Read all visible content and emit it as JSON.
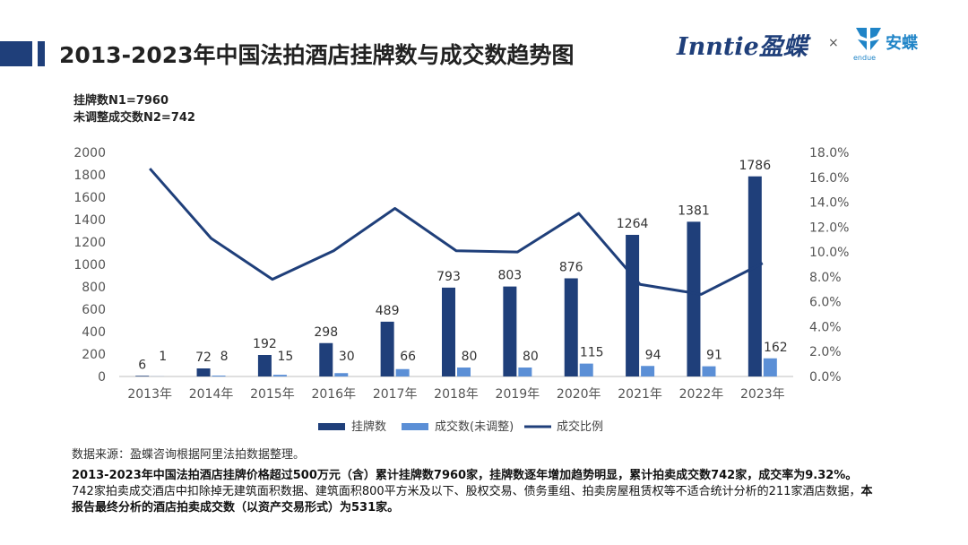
{
  "header": {
    "title": "2013-2023年中国法拍酒店挂牌数与成交数趋势图",
    "logo_text": "Inntie盈蝶",
    "logo_separator": "×",
    "partner_logo": "安蝶",
    "partner_logo_sub": "endue"
  },
  "stats": {
    "n1": "挂牌数N1=7960",
    "n2": "未调整成交数N2=742"
  },
  "colors": {
    "accent": "#1f3f7a",
    "listing_bar": "#1f3f7a",
    "deal_bar": "#5b8fd6",
    "ratio_line": "#1f3f7a"
  },
  "chart_data": {
    "type": "bar",
    "categories": [
      "2013年",
      "2014年",
      "2015年",
      "2016年",
      "2017年",
      "2018年",
      "2019年",
      "2020年",
      "2021年",
      "2022年",
      "2023年"
    ],
    "series": [
      {
        "name": "挂牌数",
        "type": "bar",
        "axis": "left",
        "values": [
          6,
          72,
          192,
          298,
          489,
          793,
          803,
          876,
          1264,
          1381,
          1786
        ]
      },
      {
        "name": "成交数(未调整)",
        "type": "bar",
        "axis": "left",
        "values": [
          1,
          8,
          15,
          30,
          66,
          80,
          80,
          115,
          94,
          91,
          162
        ]
      },
      {
        "name": "成交比例",
        "type": "line",
        "axis": "right",
        "values": [
          16.7,
          11.1,
          7.8,
          10.1,
          13.5,
          10.1,
          10.0,
          13.1,
          7.4,
          6.6,
          9.1
        ]
      }
    ],
    "ylim": [
      0,
      2000
    ],
    "yticks": [
      "0",
      "200",
      "400",
      "600",
      "800",
      "1000",
      "1200",
      "1400",
      "1600",
      "1800",
      "2000"
    ],
    "y2lim": [
      0,
      18
    ],
    "y2ticks": [
      "0.0%",
      "2.0%",
      "4.0%",
      "6.0%",
      "8.0%",
      "10.0%",
      "12.0%",
      "14.0%",
      "16.0%",
      "18.0%"
    ],
    "legend_position": "bottom",
    "grid": false
  },
  "footer": {
    "source": "数据来源：盈蝶咨询根据阿里法拍数据整理。",
    "summary_bold1": "2013-2023年中国法拍酒店挂牌价格超过500万元（含）累计挂牌数7960家，挂牌数逐年增加趋势明显，累计拍卖成交数742家，成交率为9.32%。",
    "summary_plain": "742家拍卖成交酒店中扣除掉无建筑面积数据、建筑面积800平方米及以下、股权交易、债务重组、拍卖房屋租赁权等不适合统计分析的211家酒店数据，",
    "summary_bold2": "本报告最终分析的酒店拍卖成交数（以资产交易形式）为531家。"
  }
}
